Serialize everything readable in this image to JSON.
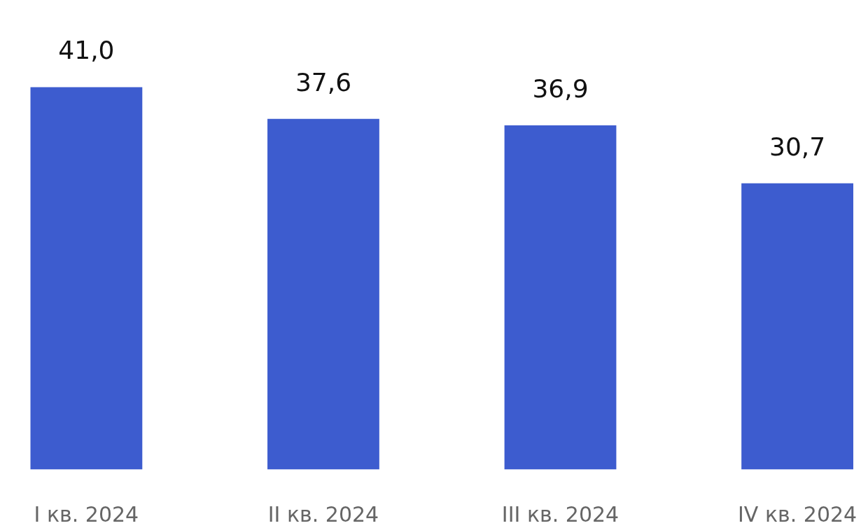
{
  "chart_data": {
    "type": "bar",
    "categories": [
      "I кв. 2024",
      "II кв. 2024",
      "III кв. 2024",
      "IV кв. 2024"
    ],
    "values": [
      41.0,
      37.6,
      36.9,
      30.7
    ],
    "value_labels": [
      "41,0",
      "37,6",
      "36,9",
      "30,7"
    ],
    "color": "#3d5ccf",
    "grid": false
  }
}
